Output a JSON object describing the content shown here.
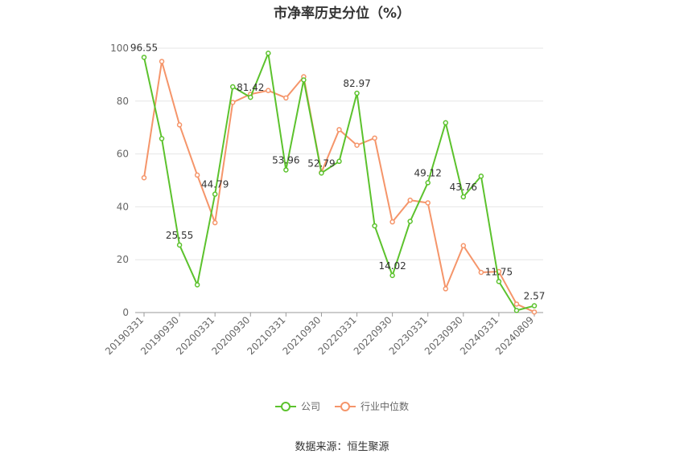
{
  "chart_data": {
    "type": "line",
    "title": "市净率历史分位（%）",
    "x_tick_labels": [
      "20190331",
      "20190930",
      "20200331",
      "20200930",
      "20210331",
      "20210930",
      "20220331",
      "20220930",
      "20230331",
      "20230930",
      "20240331",
      "20240809"
    ],
    "ylim": [
      0,
      100
    ],
    "y_ticks": [
      0,
      20,
      40,
      60,
      80,
      100
    ],
    "grid": true,
    "legend_position": "bottom",
    "series": [
      {
        "name": "公司",
        "color": "#5cc22d",
        "values": [
          96.55,
          65.8,
          25.55,
          10.5,
          44.79,
          85.4,
          81.42,
          98.1,
          53.96,
          88.0,
          52.79,
          57.2,
          82.97,
          32.8,
          14.02,
          34.5,
          49.12,
          71.8,
          43.76,
          51.6,
          11.75,
          0.8,
          2.57
        ],
        "labels": {
          "0": "96.55",
          "2": "25.55",
          "4": "44.79",
          "6": "81.42",
          "8": "53.96",
          "10": "52.79",
          "12": "82.97",
          "14": "14.02",
          "16": "49.12",
          "18": "43.76",
          "20": "11.75",
          "22": "2.57"
        }
      },
      {
        "name": "行业中位数",
        "color": "#f5956a",
        "values": [
          51.0,
          95.0,
          71.0,
          52.0,
          34.0,
          79.5,
          82.6,
          84.0,
          81.2,
          89.2,
          53.0,
          69.2,
          63.3,
          66.0,
          34.3,
          42.5,
          41.5,
          9.0,
          25.3,
          15.2,
          15.5,
          3.2,
          0.2
        ]
      }
    ]
  },
  "source_text": "数据来源：恒生聚源"
}
